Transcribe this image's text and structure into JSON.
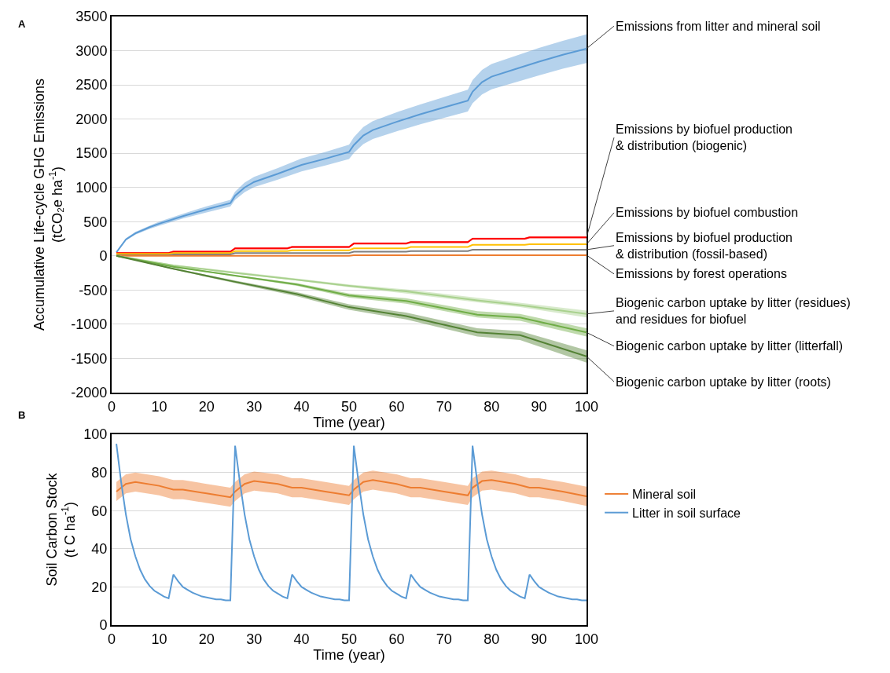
{
  "chart_data": [
    {
      "type": "line",
      "xlabel": "Time (year)",
      "ylabel": "Accumulative Life-cycle GHG Emissions\n(tCO₂e ha$^{-1}$)",
      "annotations": [
        "A"
      ],
      "xlim": [
        0,
        100
      ],
      "xticks": [
        0,
        10,
        20,
        30,
        40,
        50,
        60,
        70,
        80,
        90,
        100
      ],
      "ylim": [
        -2000,
        3500
      ],
      "yticks": [
        -2000,
        -1500,
        -1000,
        -500,
        0,
        500,
        1000,
        1500,
        2000,
        2500,
        3000,
        3500
      ],
      "grid": "y",
      "series": [
        {
          "name": "Emissions from litter and mineral soil",
          "color": "#5b9bd5",
          "x": [
            1,
            3,
            5,
            8,
            10,
            15,
            20,
            25,
            26,
            28,
            30,
            35,
            40,
            45,
            50,
            51,
            53,
            55,
            60,
            65,
            70,
            75,
            76,
            78,
            80,
            85,
            90,
            95,
            100
          ],
          "values": [
            50,
            240,
            330,
            420,
            470,
            580,
            680,
            770,
            880,
            1000,
            1080,
            1200,
            1330,
            1420,
            1520,
            1620,
            1760,
            1840,
            1960,
            2070,
            2170,
            2270,
            2400,
            2540,
            2620,
            2730,
            2840,
            2940,
            3030
          ],
          "lower": [
            47,
            225,
            310,
            395,
            440,
            545,
            635,
            720,
            820,
            930,
            1005,
            1115,
            1235,
            1320,
            1415,
            1505,
            1635,
            1710,
            1820,
            1925,
            2020,
            2110,
            2230,
            2360,
            2435,
            2540,
            2640,
            2735,
            2820
          ],
          "upper": [
            53,
            255,
            350,
            445,
            500,
            615,
            725,
            820,
            940,
            1070,
            1155,
            1285,
            1425,
            1520,
            1625,
            1735,
            1885,
            1970,
            2100,
            2215,
            2320,
            2430,
            2570,
            2720,
            2805,
            2920,
            3040,
            3145,
            3240
          ]
        },
        {
          "name": "Emissions by biofuel production\n& distribution (biogenic)",
          "color": "#ff0000",
          "x": [
            1,
            12,
            13,
            25,
            26,
            37,
            38,
            50,
            51,
            62,
            63,
            75,
            76,
            87,
            88,
            100
          ],
          "values": [
            40,
            40,
            60,
            60,
            110,
            110,
            130,
            130,
            180,
            180,
            200,
            200,
            250,
            250,
            270,
            270
          ],
          "lower": [
            25,
            25,
            45,
            45,
            95,
            95,
            115,
            115,
            165,
            165,
            185,
            185,
            235,
            235,
            255,
            255
          ],
          "upper": [
            55,
            55,
            75,
            75,
            125,
            125,
            145,
            145,
            195,
            195,
            215,
            215,
            265,
            265,
            285,
            285
          ]
        },
        {
          "name": "Emissions by biofuel combustion",
          "color": "#ffc000",
          "x": [
            1,
            12,
            13,
            25,
            26,
            37,
            38,
            50,
            51,
            62,
            63,
            75,
            76,
            87,
            88,
            100
          ],
          "values": [
            30,
            30,
            40,
            40,
            70,
            70,
            80,
            80,
            110,
            110,
            130,
            130,
            160,
            160,
            170,
            170
          ]
        },
        {
          "name": "Emissions by biofuel production\n& distribution (fossil-based)",
          "color": "#7f7f7f",
          "x": [
            1,
            12,
            13,
            25,
            26,
            37,
            38,
            50,
            51,
            62,
            63,
            75,
            76,
            87,
            88,
            100
          ],
          "values": [
            10,
            10,
            20,
            20,
            40,
            40,
            40,
            40,
            60,
            60,
            70,
            70,
            90,
            90,
            90,
            90
          ]
        },
        {
          "name": "Emissions by forest operations",
          "color": "#ed7d31",
          "x": [
            1,
            12,
            13,
            25,
            26,
            37,
            38,
            50,
            51,
            62,
            63,
            75,
            76,
            87,
            88,
            100
          ],
          "values": [
            0,
            0,
            0,
            0,
            0,
            0,
            0,
            0,
            10,
            10,
            10,
            10,
            10,
            10,
            10,
            10
          ]
        },
        {
          "name": "Biogenic carbon uptake by litter (residues)\nand residues for biofuel",
          "color": "#a9d18e",
          "x": [
            1,
            13,
            26,
            39,
            50,
            62,
            77,
            86,
            100
          ],
          "values": [
            0,
            -140,
            -250,
            -350,
            -440,
            -520,
            -650,
            -720,
            -850
          ],
          "lower": [
            0,
            -150,
            -260,
            -360,
            -460,
            -550,
            -680,
            -750,
            -900
          ],
          "upper": [
            0,
            -130,
            -230,
            -330,
            -420,
            -490,
            -610,
            -680,
            -800
          ]
        },
        {
          "name": "Biogenic carbon uptake by litter (litterfall)",
          "color": "#70ad47",
          "x": [
            1,
            13,
            26,
            39,
            50,
            62,
            77,
            86,
            100
          ],
          "values": [
            0,
            -160,
            -290,
            -420,
            -580,
            -660,
            -860,
            -900,
            -1120
          ],
          "lower": [
            0,
            -170,
            -300,
            -440,
            -610,
            -700,
            -900,
            -950,
            -1180
          ],
          "upper": [
            0,
            -150,
            -280,
            -400,
            -550,
            -620,
            -810,
            -850,
            -1060
          ]
        },
        {
          "name": "Biogenic carbon uptake by litter (roots)",
          "color": "#548235",
          "x": [
            1,
            13,
            26,
            39,
            50,
            62,
            77,
            86,
            100
          ],
          "values": [
            0,
            -190,
            -380,
            -560,
            -750,
            -880,
            -1120,
            -1160,
            -1470
          ],
          "lower": [
            0,
            -200,
            -400,
            -590,
            -790,
            -930,
            -1180,
            -1230,
            -1560
          ],
          "upper": [
            0,
            -180,
            -360,
            -530,
            -710,
            -830,
            -1060,
            -1100,
            -1380
          ]
        }
      ]
    },
    {
      "type": "line",
      "xlabel": "Time (year)",
      "ylabel": "Soil Carbon Stock\n(t C ha$^{-1}$)",
      "annotations": [
        "B"
      ],
      "legend": "right",
      "xlim": [
        0,
        100
      ],
      "xticks": [
        0,
        10,
        20,
        30,
        40,
        50,
        60,
        70,
        80,
        90,
        100
      ],
      "ylim": [
        0,
        100
      ],
      "yticks": [
        0,
        20,
        40,
        60,
        80,
        100
      ],
      "grid": "y",
      "series": [
        {
          "name": "Mineral soil",
          "color": "#ed7d31",
          "x": [
            1,
            3,
            5,
            10,
            13,
            15,
            20,
            25,
            26,
            28,
            30,
            35,
            38,
            40,
            45,
            50,
            51,
            53,
            55,
            60,
            63,
            65,
            70,
            75,
            76,
            78,
            80,
            85,
            88,
            90,
            95,
            100
          ],
          "values": [
            70,
            74,
            75,
            73,
            71,
            71,
            69,
            67,
            70,
            74,
            75.5,
            74,
            72,
            72,
            70,
            68,
            71,
            75,
            76,
            74,
            72,
            72,
            70,
            68,
            72,
            75.5,
            76,
            74,
            72,
            72,
            70,
            67.5
          ],
          "lower": [
            65,
            69,
            70,
            68,
            66,
            66,
            64,
            62,
            65,
            69,
            70.5,
            69,
            67,
            67,
            65,
            63,
            66,
            70,
            71,
            69,
            67,
            67,
            65,
            63,
            67,
            70.5,
            71,
            69,
            67,
            67,
            65,
            62.5
          ],
          "upper": [
            75,
            79,
            80,
            78,
            76,
            76,
            74,
            72,
            75,
            79,
            80.5,
            79,
            77,
            77,
            75,
            73,
            76,
            80,
            81,
            79,
            77,
            77,
            75,
            73,
            77,
            80.5,
            81,
            79,
            77,
            77,
            75,
            72.5
          ]
        },
        {
          "name": "Litter in soil surface",
          "color": "#5b9bd5",
          "x": [
            1,
            2,
            3,
            4,
            5,
            6,
            7,
            8,
            9,
            10,
            11,
            12,
            13,
            14,
            15,
            16,
            17,
            18,
            19,
            20,
            21,
            22,
            23,
            24,
            25,
            26,
            27,
            28,
            29,
            30,
            31,
            32,
            33,
            34,
            35,
            36,
            37,
            38,
            39,
            40,
            41,
            42,
            43,
            44,
            45,
            46,
            47,
            48,
            49,
            50,
            51,
            52,
            53,
            54,
            55,
            56,
            57,
            58,
            59,
            60,
            61,
            62,
            63,
            64,
            65,
            66,
            67,
            68,
            69,
            70,
            71,
            72,
            73,
            74,
            75,
            76,
            77,
            78,
            79,
            80,
            81,
            82,
            83,
            84,
            85,
            86,
            87,
            88,
            89,
            90,
            91,
            92,
            93,
            94,
            95,
            96,
            97,
            98,
            99,
            100
          ],
          "values": [
            95,
            75,
            58,
            45,
            36,
            29,
            24,
            20.5,
            18,
            16.5,
            15,
            14,
            26.5,
            23,
            20,
            18.5,
            17,
            16,
            15,
            14.5,
            14,
            13.5,
            13.5,
            13,
            13,
            94,
            75,
            58,
            45,
            36,
            29,
            24,
            20.5,
            18,
            16.5,
            15,
            14,
            26.5,
            23,
            20,
            18.5,
            17,
            16,
            15,
            14.5,
            14,
            13.5,
            13.5,
            13,
            13,
            94,
            75,
            58,
            45,
            36,
            29,
            24,
            20.5,
            18,
            16.5,
            15,
            14,
            26.5,
            23,
            20,
            18.5,
            17,
            16,
            15,
            14.5,
            14,
            13.5,
            13.5,
            13,
            13,
            94,
            75,
            58,
            45,
            36,
            29,
            24,
            20.5,
            18,
            16.5,
            15,
            14,
            26.5,
            23,
            20,
            18.5,
            17,
            16,
            15,
            14.5,
            14,
            13.5,
            13.5,
            13,
            13
          ]
        }
      ]
    }
  ]
}
